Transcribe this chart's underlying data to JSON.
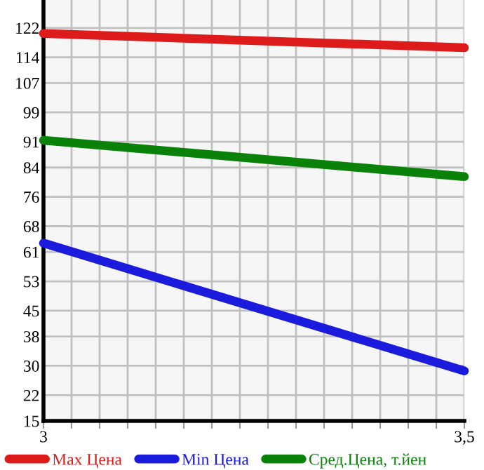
{
  "chart_data": {
    "type": "line",
    "x": [
      3,
      3.5
    ],
    "series": [
      {
        "name": "Max Цена",
        "color": "#dd1b1b",
        "values": [
          120.5,
          116.6
        ]
      },
      {
        "name": "Min Цена",
        "color": "#1b1bdd",
        "values": [
          63.4,
          28.6
        ]
      },
      {
        "name": "Сред.Цена, т.йен",
        "color": "#0a820a",
        "values": [
          91.4,
          81.5
        ]
      }
    ],
    "xlim": [
      3,
      3.5
    ],
    "xticks": [
      3,
      {
        "value": 3.0333,
        "label": null
      },
      {
        "value": 3.0667,
        "label": null
      },
      {
        "value": 3.1,
        "label": null
      },
      {
        "value": 3.1333,
        "label": null
      },
      {
        "value": 3.1667,
        "label": null
      },
      {
        "value": 3.2,
        "label": null
      },
      {
        "value": 3.2333,
        "label": null
      },
      {
        "value": 3.2667,
        "label": null
      },
      {
        "value": 3.3,
        "label": null
      },
      {
        "value": 3.3333,
        "label": null
      },
      {
        "value": 3.3667,
        "label": null
      },
      {
        "value": 3.4,
        "label": null
      },
      {
        "value": 3.4333,
        "label": null
      },
      {
        "value": 3.4667,
        "label": null
      },
      {
        "value": 3.5,
        "label": "3,5"
      }
    ],
    "ylim": [
      15,
      129.6
    ],
    "yticks": [
      15,
      22,
      30,
      38,
      45,
      53,
      61,
      68,
      76,
      84,
      91,
      99,
      107,
      114,
      122
    ],
    "grid": true,
    "legend": "bottom",
    "marker": "none",
    "line_style": "solid"
  }
}
